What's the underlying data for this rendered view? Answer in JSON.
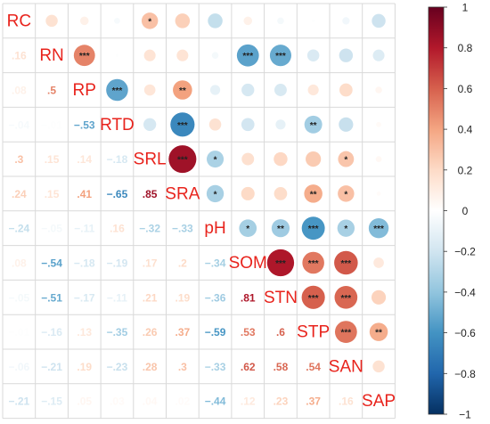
{
  "chart_data": {
    "type": "heatmap",
    "variables": [
      "RC",
      "RN",
      "RP",
      "RTD",
      "SRL",
      "SRA",
      "pH",
      "SOM",
      "STN",
      "STP",
      "SAN",
      "SAP"
    ],
    "matrix": [
      [
        1,
        0.16,
        0.08,
        -0.04,
        0.3,
        0.24,
        -0.24,
        0.08,
        -0.05,
        -0.01,
        -0.06,
        -0.21
      ],
      [
        0.16,
        1,
        0.5,
        -0.01,
        0.15,
        0.15,
        -0.05,
        -0.54,
        -0.51,
        -0.16,
        -0.21,
        -0.15
      ],
      [
        0.08,
        0.5,
        1,
        -0.53,
        0.14,
        0.41,
        -0.11,
        -0.18,
        -0.17,
        0.13,
        0.19,
        0.05
      ],
      [
        -0.04,
        -0.01,
        -0.53,
        1,
        -0.18,
        -0.65,
        0.16,
        -0.19,
        -0.11,
        -0.35,
        -0.23,
        0.03
      ],
      [
        0.3,
        0.15,
        0.14,
        -0.18,
        1,
        0.85,
        -0.32,
        0.17,
        0.21,
        0.26,
        0.28,
        0.04
      ],
      [
        0.24,
        0.15,
        0.41,
        -0.65,
        0.85,
        1,
        -0.33,
        0.2,
        0.19,
        0.37,
        0.3,
        0.02
      ],
      [
        -0.24,
        -0.05,
        -0.11,
        0.16,
        -0.32,
        -0.33,
        1,
        -0.34,
        -0.36,
        -0.59,
        -0.33,
        -0.44
      ],
      [
        0.08,
        -0.54,
        -0.18,
        -0.19,
        0.17,
        0.2,
        -0.34,
        1,
        0.81,
        0.53,
        0.62,
        0.12
      ],
      [
        -0.05,
        -0.51,
        -0.17,
        -0.11,
        0.21,
        0.19,
        -0.36,
        0.81,
        1,
        0.6,
        0.58,
        0.23
      ],
      [
        -0.01,
        -0.16,
        0.13,
        -0.35,
        0.26,
        0.37,
        -0.59,
        0.53,
        0.6,
        1,
        0.54,
        0.37
      ],
      [
        -0.06,
        -0.21,
        0.19,
        -0.23,
        0.28,
        0.3,
        -0.33,
        0.62,
        0.58,
        0.54,
        1,
        0.16
      ],
      [
        -0.21,
        -0.15,
        0.05,
        0.03,
        0.04,
        0.02,
        -0.44,
        0.12,
        0.23,
        0.37,
        0.16,
        1
      ]
    ],
    "significance": [
      [
        "",
        "",
        "",
        "",
        "*",
        "",
        "",
        "",
        "",
        "",
        "",
        ""
      ],
      [
        "",
        "",
        "***",
        "",
        "",
        "",
        "",
        "***",
        "***",
        "",
        "",
        ""
      ],
      [
        "",
        "***",
        "",
        "***",
        "",
        "**",
        "",
        "",
        "",
        "",
        "",
        ""
      ],
      [
        "",
        "",
        "***",
        "",
        "",
        "***",
        "",
        "",
        "",
        "**",
        "",
        ""
      ],
      [
        "*",
        "",
        "",
        "",
        "",
        "***",
        "*",
        "",
        "",
        "",
        "*",
        ""
      ],
      [
        "",
        "",
        "**",
        "***",
        "***",
        "",
        "*",
        "",
        "",
        "**",
        "*",
        ""
      ],
      [
        "",
        "",
        "",
        "",
        "*",
        "*",
        "",
        "*",
        "**",
        "***",
        "*",
        "***"
      ],
      [
        "",
        "***",
        "",
        "",
        "",
        "",
        "*",
        "",
        "***",
        "***",
        "***",
        ""
      ],
      [
        "",
        "***",
        "",
        "",
        "",
        "",
        "**",
        "***",
        "",
        "***",
        "***",
        ""
      ],
      [
        "",
        "",
        "",
        "**",
        "",
        "**",
        "***",
        "***",
        "***",
        "",
        "***",
        "**"
      ],
      [
        "",
        "",
        "",
        "",
        "*",
        "*",
        "*",
        "***",
        "***",
        "***",
        "",
        ""
      ],
      [
        "",
        "",
        "",
        "",
        "",
        "",
        "***",
        "",
        "",
        "**",
        "",
        ""
      ]
    ],
    "lower_triangle": "number",
    "upper_triangle": "circle",
    "color_scale": {
      "min": -1,
      "max": 1,
      "ticks": [
        "1",
        "0.8",
        "0.6",
        "0.4",
        "0.2",
        "0",
        "−0.2",
        "−0.4",
        "−0.6",
        "−0.8",
        "−1"
      ],
      "colors": [
        "#67001f",
        "#b2182b",
        "#d6604d",
        "#f4a582",
        "#fddbc7",
        "#ffffff",
        "#d1e5f0",
        "#92c5de",
        "#4393c3",
        "#2166ac",
        "#053061"
      ]
    },
    "label_color": "#e8231c",
    "grid": true,
    "legend": "right"
  }
}
